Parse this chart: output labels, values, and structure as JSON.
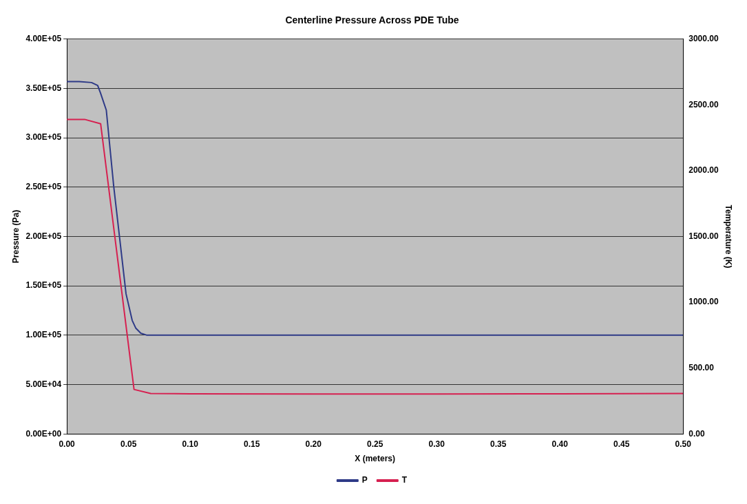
{
  "chart_data": {
    "type": "line",
    "title": "Centerline Pressure Across PDE Tube",
    "xlabel": "X (meters)",
    "ylabel": "Pressure (Pa)",
    "y2label": "Temperature (K)",
    "series": [
      {
        "name": "P",
        "color": "#2e3a87",
        "x": [
          0,
          0.01,
          0.02,
          0.025,
          0.0274,
          0.032,
          0.038,
          0.048,
          0.053,
          0.056,
          0.06,
          0.065,
          0.1,
          0.2,
          0.3,
          0.4,
          0.5
        ],
        "values": [
          357000,
          357000,
          356000,
          353000,
          345000,
          328000,
          251000,
          142000,
          115000,
          107000,
          102000,
          100000,
          100000,
          100000,
          100000,
          100000,
          100000
        ]
      },
      {
        "name": "T",
        "color": "#d62050",
        "axis": "y2",
        "x": [
          0,
          0.0144,
          0.0274,
          0.0545,
          0.068,
          0.1,
          0.2,
          0.3,
          0.4,
          0.5
        ],
        "values": [
          2390,
          2390,
          2357,
          338,
          307,
          305,
          303,
          303,
          305,
          307
        ]
      }
    ],
    "xlim": [
      0,
      0.5
    ],
    "xticks": [
      {
        "value": 0,
        "label": "0.00"
      },
      {
        "value": 0.05,
        "label": "0.05"
      },
      {
        "value": 0.1,
        "label": "0.10"
      },
      {
        "value": 0.15,
        "label": "0.15"
      },
      {
        "value": 0.2,
        "label": "0.20"
      },
      {
        "value": 0.25,
        "label": "0.25"
      },
      {
        "value": 0.3,
        "label": "0.30"
      },
      {
        "value": 0.35,
        "label": "0.35"
      },
      {
        "value": 0.4,
        "label": "0.40"
      },
      {
        "value": 0.45,
        "label": "0.45"
      },
      {
        "value": 0.5,
        "label": "0.50"
      }
    ],
    "ylim": [
      0,
      400000
    ],
    "yticks": [
      {
        "value": 0,
        "label": "0.00E+00"
      },
      {
        "value": 50000,
        "label": "5.00E+04"
      },
      {
        "value": 100000,
        "label": "1.00E+05"
      },
      {
        "value": 150000,
        "label": "1.50E+05"
      },
      {
        "value": 200000,
        "label": "2.00E+05"
      },
      {
        "value": 250000,
        "label": "2.50E+05"
      },
      {
        "value": 300000,
        "label": "3.00E+05"
      },
      {
        "value": 350000,
        "label": "3.50E+05"
      },
      {
        "value": 400000,
        "label": "4.00E+05"
      }
    ],
    "y2lim": [
      0,
      3000
    ],
    "y2ticks": [
      {
        "value": 0,
        "label": "0.00"
      },
      {
        "value": 500,
        "label": "500.00"
      },
      {
        "value": 1000,
        "label": "1000.00"
      },
      {
        "value": 1500,
        "label": "1500.00"
      },
      {
        "value": 2000,
        "label": "2000.00"
      },
      {
        "value": 2500,
        "label": "2500.00"
      },
      {
        "value": 3000,
        "label": "3000.00"
      }
    ],
    "grid": "y",
    "legend": "bottom",
    "marker": "none",
    "line_style": "solid"
  }
}
